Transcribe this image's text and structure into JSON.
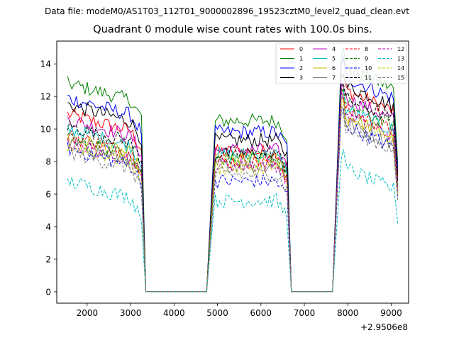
{
  "suptitle": "Data file: modeM0/AS1T03_112T01_9000002896_19523cztM0_level2_quad_clean.evt",
  "chart_data": {
    "type": "line",
    "title": "Quadrant 0 module wise count rates with 100.0s bins.",
    "xlabel": "",
    "ylabel": "",
    "offset_text": "+2.9506e8",
    "xlim": [
      1300,
      9400
    ],
    "ylim": [
      -0.7,
      15.4
    ],
    "xticks": [
      2000,
      3000,
      4000,
      5000,
      6000,
      7000,
      8000,
      9000
    ],
    "xtick_labels": [
      "2000",
      "3000",
      "4000",
      "5000",
      "6000",
      "7000",
      "8000",
      "9000"
    ],
    "yticks": [
      0,
      2,
      4,
      6,
      8,
      10,
      12,
      14
    ],
    "ytick_labels": [
      "0",
      "2",
      "4",
      "6",
      "8",
      "10",
      "12",
      "14"
    ],
    "grid": false,
    "legend_position": "top-right",
    "segments": [
      [
        1550,
        3250
      ],
      [
        4950,
        6600
      ],
      [
        7850,
        9050
      ]
    ],
    "zero_gaps": [
      [
        3350,
        4750
      ],
      [
        6750,
        7650
      ]
    ],
    "series": [
      {
        "name": "0",
        "color": "#ff0000",
        "dash": "solid",
        "levels": [
          10.3,
          8.6,
          11.8
        ]
      },
      {
        "name": "1",
        "color": "#008000",
        "dash": "solid",
        "levels": [
          12.2,
          10.5,
          13.2
        ]
      },
      {
        "name": "2",
        "color": "#0000ff",
        "dash": "solid",
        "levels": [
          11.3,
          9.8,
          12.6
        ]
      },
      {
        "name": "3",
        "color": "#000000",
        "dash": "solid",
        "levels": [
          10.9,
          9.3,
          12.1
        ]
      },
      {
        "name": "4",
        "color": "#bf00bf",
        "dash": "solid",
        "levels": [
          10.0,
          8.7,
          11.3
        ]
      },
      {
        "name": "5",
        "color": "#00bfbf",
        "dash": "solid",
        "levels": [
          9.4,
          8.4,
          10.6
        ]
      },
      {
        "name": "6",
        "color": "#bfbf00",
        "dash": "solid",
        "levels": [
          8.9,
          8.1,
          10.2
        ]
      },
      {
        "name": "7",
        "color": "#808080",
        "dash": "solid",
        "levels": [
          8.5,
          7.8,
          9.8
        ]
      },
      {
        "name": "8",
        "color": "#ff0000",
        "dash": "dashed",
        "levels": [
          9.0,
          8.0,
          10.6
        ]
      },
      {
        "name": "9",
        "color": "#008000",
        "dash": "dashed",
        "levels": [
          8.8,
          8.2,
          10.9
        ]
      },
      {
        "name": "10",
        "color": "#0000ff",
        "dash": "dashed",
        "levels": [
          8.2,
          6.8,
          9.6
        ]
      },
      {
        "name": "11",
        "color": "#000000",
        "dash": "dashed",
        "levels": [
          9.6,
          8.5,
          11.3
        ]
      },
      {
        "name": "12",
        "color": "#bf00bf",
        "dash": "dashed",
        "levels": [
          8.6,
          7.8,
          10.3
        ]
      },
      {
        "name": "13",
        "color": "#00bfbf",
        "dash": "dashed",
        "levels": [
          6.2,
          5.6,
          7.0
        ]
      },
      {
        "name": "14",
        "color": "#bfbf00",
        "dash": "dashed",
        "levels": [
          8.4,
          7.6,
          10.0
        ]
      },
      {
        "name": "15",
        "color": "#808080",
        "dash": "dashed",
        "levels": [
          8.0,
          7.2,
          9.4
        ]
      }
    ]
  }
}
